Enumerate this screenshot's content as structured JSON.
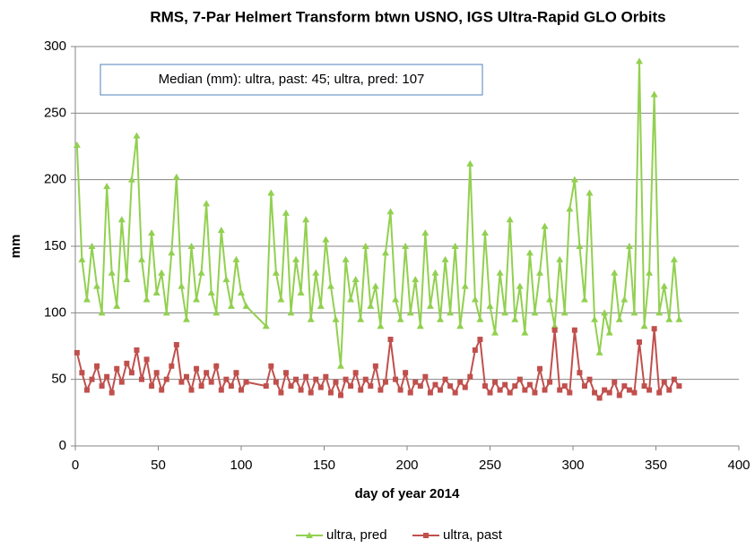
{
  "chart_data": {
    "type": "line",
    "title": "RMS, 7-Par Helmert Transform btwn USNO, IGS Ultra-Rapid GLO Orbits",
    "annotation": "Median (mm): ultra, past: 45; ultra, pred: 107",
    "x_label": "day of year 2014",
    "y_label": "mm",
    "xlim": [
      0,
      400
    ],
    "xticks": [
      0,
      50,
      100,
      150,
      200,
      250,
      300,
      350,
      400
    ],
    "ylim": [
      0,
      300
    ],
    "yticks": [
      0,
      50,
      100,
      150,
      200,
      250,
      300
    ],
    "grid": true,
    "legend": "bottom",
    "x": [
      1,
      4,
      7,
      10,
      13,
      16,
      19,
      22,
      25,
      28,
      31,
      34,
      37,
      40,
      43,
      46,
      49,
      52,
      55,
      58,
      61,
      64,
      67,
      70,
      73,
      76,
      79,
      82,
      85,
      88,
      91,
      94,
      97,
      100,
      103,
      115,
      118,
      121,
      124,
      127,
      130,
      133,
      136,
      139,
      142,
      145,
      148,
      151,
      154,
      157,
      160,
      163,
      166,
      169,
      172,
      175,
      178,
      181,
      184,
      187,
      190,
      193,
      196,
      199,
      202,
      205,
      208,
      211,
      214,
      217,
      220,
      223,
      226,
      229,
      232,
      235,
      238,
      241,
      244,
      247,
      250,
      253,
      256,
      259,
      262,
      265,
      268,
      271,
      274,
      277,
      280,
      283,
      286,
      289,
      292,
      295,
      298,
      301,
      304,
      307,
      310,
      313,
      316,
      319,
      322,
      325,
      328,
      331,
      334,
      337,
      340,
      343,
      346,
      349,
      352,
      355,
      358,
      361,
      364
    ],
    "series": [
      {
        "name": "ultra, pred",
        "color": "#92d050",
        "marker": "triangle",
        "values": [
          226,
          140,
          110,
          150,
          120,
          100,
          195,
          130,
          105,
          170,
          125,
          200,
          233,
          140,
          110,
          160,
          115,
          130,
          100,
          145,
          202,
          120,
          95,
          150,
          110,
          130,
          182,
          115,
          100,
          162,
          125,
          105,
          140,
          115,
          105,
          90,
          190,
          130,
          110,
          175,
          100,
          140,
          115,
          170,
          95,
          130,
          105,
          155,
          120,
          95,
          60,
          140,
          110,
          125,
          95,
          150,
          105,
          120,
          90,
          145,
          176,
          110,
          95,
          150,
          100,
          125,
          90,
          160,
          105,
          130,
          95,
          140,
          100,
          150,
          90,
          120,
          212,
          110,
          95,
          160,
          105,
          85,
          130,
          100,
          170,
          95,
          120,
          85,
          145,
          100,
          130,
          165,
          110,
          90,
          140,
          100,
          178,
          200,
          150,
          110,
          190,
          95,
          70,
          100,
          85,
          130,
          95,
          110,
          150,
          100,
          289,
          90,
          130,
          264,
          100,
          120,
          95,
          140,
          95
        ]
      },
      {
        "name": "ultra, past",
        "color": "#c0504d",
        "marker": "square",
        "values": [
          70,
          55,
          42,
          50,
          60,
          45,
          52,
          40,
          58,
          48,
          62,
          55,
          72,
          50,
          65,
          45,
          55,
          42,
          50,
          60,
          76,
          48,
          52,
          42,
          58,
          45,
          55,
          48,
          60,
          42,
          50,
          45,
          55,
          42,
          48,
          45,
          60,
          48,
          40,
          55,
          45,
          50,
          42,
          52,
          40,
          50,
          44,
          52,
          40,
          48,
          38,
          50,
          45,
          55,
          42,
          50,
          45,
          60,
          42,
          48,
          80,
          50,
          42,
          55,
          40,
          48,
          45,
          52,
          40,
          46,
          42,
          50,
          45,
          40,
          48,
          44,
          52,
          72,
          80,
          45,
          40,
          48,
          42,
          46,
          40,
          45,
          50,
          42,
          46,
          40,
          58,
          42,
          48,
          87,
          42,
          45,
          40,
          87,
          55,
          45,
          50,
          40,
          36,
          42,
          40,
          48,
          38,
          45,
          42,
          40,
          78,
          45,
          42,
          88,
          40,
          48,
          42,
          50,
          45
        ]
      }
    ]
  }
}
